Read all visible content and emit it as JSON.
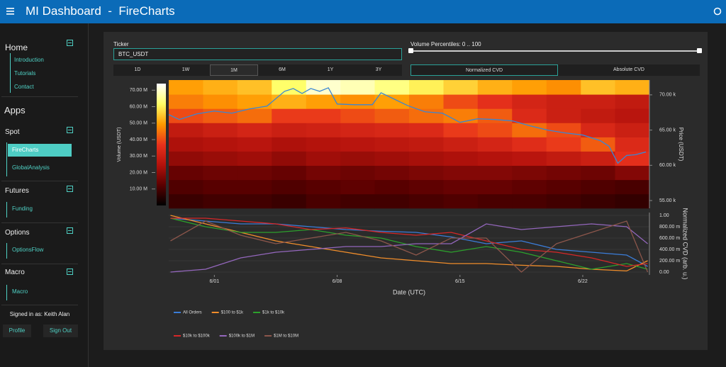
{
  "header": {
    "title": "MI Dashboard  -  FireCharts"
  },
  "sidebar": {
    "home": {
      "title": "Home",
      "items": [
        "Introduction",
        "Tutorials",
        "Contact"
      ]
    },
    "apps_title": "Apps",
    "groups": [
      {
        "title": "Spot",
        "items": [
          "FireCharts",
          "GlobalAnalysis"
        ]
      },
      {
        "title": "Futures",
        "items": [
          "Funding"
        ]
      },
      {
        "title": "Options",
        "items": [
          "OptionsFlow"
        ]
      },
      {
        "title": "Macro",
        "items": [
          "Macro"
        ]
      }
    ],
    "signed_in": "Signed in as: Keith Alan",
    "buttons": [
      "Profile",
      "Sign Out"
    ]
  },
  "controls": {
    "ticker_label": "Ticker",
    "ticker_value": "BTC_USDT",
    "percentiles_label": "Volume Percentiles: 0 .. 100",
    "timeframes": [
      "1D",
      "1W",
      "1M",
      "6M",
      "1Y",
      "3Y"
    ],
    "cvd_modes": [
      "Normalized CVD",
      "Absolute CVD"
    ]
  },
  "chart_data": [
    {
      "type": "heatmap",
      "ylabel": "Price (USDT)",
      "colorbar_label": "Volume (USDT)",
      "xlim": [
        -1.6,
        25.8
      ],
      "ylim": [
        53900,
        72100
      ],
      "yticks": [
        {
          "value": 55000,
          "label": "55.00 k"
        },
        {
          "value": 60000,
          "label": "60.00 k"
        },
        {
          "value": 65000,
          "label": "65.00 k"
        },
        {
          "value": 70000,
          "label": "70.00 k"
        }
      ],
      "zlim": [
        0,
        74
      ],
      "zticks": [
        {
          "value": 10,
          "label": "10.00 M"
        },
        {
          "value": 20,
          "label": "20.00 M"
        },
        {
          "value": 30,
          "label": "30.00 M"
        },
        {
          "value": 40,
          "label": "40.00 M"
        },
        {
          "value": 50,
          "label": "50.00 M"
        },
        {
          "value": 60,
          "label": "60.00 M"
        },
        {
          "value": 70,
          "label": "70.00 M"
        }
      ],
      "colorscale": [
        "#000000",
        "#5a0000",
        "#b3120c",
        "#e8321c",
        "#ff9a00",
        "#ffff66",
        "#ffffff"
      ],
      "x_bins": [
        -1.6,
        0.36,
        2.31,
        4.27,
        6.23,
        8.19,
        10.14,
        12.1,
        14.06,
        16.01,
        17.97,
        19.93,
        21.89,
        23.84,
        25.8
      ],
      "y_bins": [
        53900,
        55920,
        57940,
        59960,
        61980,
        64000,
        66020,
        68040,
        70060,
        72100
      ],
      "z": [
        [
          8,
          9,
          9,
          8,
          10,
          9,
          9,
          10,
          11,
          10,
          10,
          9,
          8,
          7
        ],
        [
          11,
          12,
          12,
          11,
          12,
          13,
          12,
          13,
          14,
          14,
          13,
          12,
          11,
          10
        ],
        [
          14,
          15,
          15,
          14,
          16,
          15,
          16,
          17,
          18,
          18,
          17,
          16,
          15,
          18
        ],
        [
          20,
          21,
          22,
          20,
          22,
          21,
          22,
          23,
          24,
          25,
          26,
          28,
          30,
          36
        ],
        [
          24,
          25,
          26,
          24,
          25,
          26,
          27,
          28,
          30,
          32,
          35,
          38,
          42,
          34
        ],
        [
          28,
          30,
          32,
          30,
          31,
          32,
          33,
          34,
          38,
          40,
          44,
          40,
          33,
          30
        ],
        [
          40,
          42,
          44,
          38,
          38,
          40,
          42,
          44,
          46,
          42,
          34,
          30,
          28,
          26
        ],
        [
          46,
          48,
          50,
          52,
          50,
          48,
          50,
          46,
          40,
          36,
          32,
          30,
          30,
          28
        ],
        [
          50,
          52,
          54,
          62,
          70,
          68,
          64,
          60,
          56,
          52,
          50,
          48,
          54,
          52
        ]
      ],
      "line": {
        "color": "#3a86d4",
        "x": [
          -1.6,
          -1,
          0,
          1,
          2,
          3,
          4,
          5,
          5.5,
          6,
          6.5,
          7,
          7.5,
          8,
          9,
          10,
          10.5,
          11,
          12,
          13,
          14,
          15,
          16,
          17,
          18,
          19,
          20,
          21,
          22,
          23,
          23.5,
          24,
          24.5,
          25,
          25.6
        ],
        "values": [
          67200,
          66500,
          67300,
          67700,
          67400,
          68000,
          68400,
          70500,
          70900,
          70200,
          70900,
          70500,
          71000,
          68700,
          68600,
          68600,
          70300,
          69700,
          68500,
          67600,
          67400,
          66100,
          66600,
          66500,
          66300,
          65600,
          65000,
          64600,
          64300,
          63500,
          62700,
          60300,
          61400,
          61500,
          61900
        ]
      }
    },
    {
      "type": "line",
      "xlabel": "Date (UTC)",
      "ylabel": "Normalized CVD (arb. u.)",
      "xlim": [
        -1.6,
        25.8
      ],
      "ylim": [
        -0.05,
        1.05
      ],
      "xticks": [
        {
          "value": 1,
          "label": "6/01"
        },
        {
          "value": 8,
          "label": "6/08"
        },
        {
          "value": 15,
          "label": "6/15"
        },
        {
          "value": 22,
          "label": "6/22"
        }
      ],
      "yticks": [
        {
          "value": 0,
          "label": "0.00"
        },
        {
          "value": 0.2,
          "label": "200.00 m"
        },
        {
          "value": 0.4,
          "label": "400.00 m"
        },
        {
          "value": 0.6,
          "label": "600.00 m"
        },
        {
          "value": 0.8,
          "label": "800.00 m"
        },
        {
          "value": 1,
          "label": "1.00"
        }
      ],
      "grid": true,
      "x": [
        -1.5,
        0.5,
        2.5,
        4.5,
        6.5,
        8.5,
        10.5,
        12.5,
        14.5,
        16.5,
        18.5,
        20.5,
        22.5,
        24.5,
        25.7
      ],
      "series": [
        {
          "name": "All Orders",
          "color": "#3b7dd8",
          "values": [
            0.95,
            0.9,
            0.85,
            0.85,
            0.8,
            0.75,
            0.72,
            0.7,
            0.62,
            0.5,
            0.55,
            0.4,
            0.35,
            0.3,
            0.1
          ]
        },
        {
          "name": "$100 to $1k",
          "color": "#f28e2b",
          "values": [
            1.0,
            0.85,
            0.7,
            0.55,
            0.45,
            0.35,
            0.25,
            0.2,
            0.15,
            0.15,
            0.12,
            0.1,
            0.05,
            0.02,
            0.2
          ]
        },
        {
          "name": "$1k to $10k",
          "color": "#2ca02c",
          "values": [
            0.95,
            0.8,
            0.7,
            0.7,
            0.75,
            0.65,
            0.6,
            0.45,
            0.35,
            0.45,
            0.35,
            0.2,
            0.05,
            0.15,
            0.05
          ]
        },
        {
          "name": "$10k to $100k",
          "color": "#d62728",
          "values": [
            0.95,
            0.95,
            0.9,
            0.85,
            0.75,
            0.78,
            0.7,
            0.65,
            0.7,
            0.55,
            0.4,
            0.35,
            0.25,
            0.1,
            0.15
          ]
        },
        {
          "name": "$100k to $1M",
          "color": "#9467bd",
          "values": [
            0.0,
            0.05,
            0.25,
            0.35,
            0.4,
            0.45,
            0.45,
            0.5,
            0.5,
            0.85,
            0.75,
            0.8,
            0.85,
            0.8,
            0.5
          ]
        },
        {
          "name": "$1M to $10M",
          "color": "#8c564b",
          "values": [
            0.55,
            0.9,
            0.65,
            0.5,
            0.6,
            0.7,
            0.55,
            0.3,
            0.6,
            0.6,
            0.0,
            0.5,
            0.7,
            0.9,
            0.0
          ]
        }
      ]
    }
  ]
}
